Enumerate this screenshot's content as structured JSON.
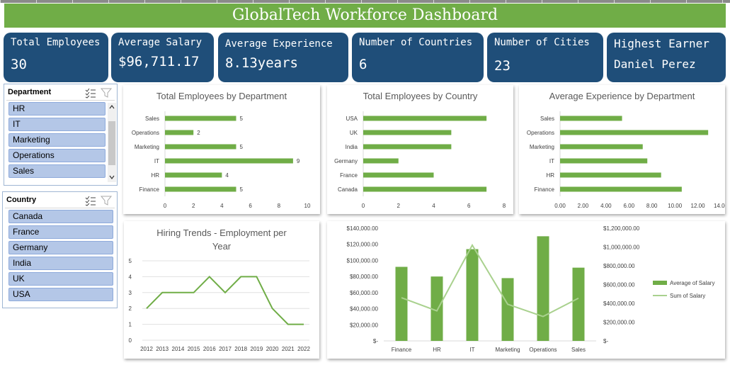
{
  "dashboard": {
    "title": "GlobalTech Workforce Dashboard"
  },
  "kpis": [
    {
      "label": "Total Employees",
      "value": "30"
    },
    {
      "label": "Average Salary",
      "value": "$96,711.17"
    },
    {
      "label": "Average Experience",
      "value": "8.13years"
    },
    {
      "label": "Number of Countries",
      "value": "6"
    },
    {
      "label": "Number of Cities",
      "value": "23"
    },
    {
      "label": "Highest Earner",
      "value": "Daniel Perez"
    }
  ],
  "slicers": {
    "department": {
      "title": "Department",
      "items": [
        "HR",
        "IT",
        "Marketing",
        "Operations",
        "Sales"
      ],
      "icons": [
        "multi-select-icon",
        "clear-filter-icon",
        "scroll-up-icon",
        "scroll-down-icon"
      ]
    },
    "country": {
      "title": "Country",
      "items": [
        "Canada",
        "France",
        "Germany",
        "India",
        "UK",
        "USA"
      ],
      "icons": [
        "multi-select-icon",
        "clear-filter-icon"
      ]
    }
  },
  "chart_data": [
    {
      "id": "emp_by_dept",
      "type": "bar",
      "orientation": "horizontal",
      "title": "Total Employees by Department",
      "categories": [
        "Sales",
        "Operations",
        "Marketing",
        "IT",
        "HR",
        "Finance"
      ],
      "values": [
        5,
        2,
        5,
        9,
        4,
        5
      ],
      "data_labels": [
        "5",
        "2",
        "5",
        "9",
        "4",
        "5"
      ],
      "xlim": [
        0,
        10
      ],
      "xticks": [
        "0",
        "2",
        "4",
        "6",
        "8",
        "10"
      ],
      "color": "#70ad47",
      "grid": false
    },
    {
      "id": "emp_by_country",
      "type": "bar",
      "orientation": "horizontal",
      "title": "Total Employees by Country",
      "categories": [
        "USA",
        "UK",
        "India",
        "Germany",
        "France",
        "Canada"
      ],
      "values": [
        7,
        5,
        5,
        2,
        4,
        7
      ],
      "xlim": [
        0,
        8
      ],
      "xticks": [
        "0",
        "2",
        "4",
        "6",
        "8"
      ],
      "color": "#70ad47",
      "grid": false
    },
    {
      "id": "exp_by_dept",
      "type": "bar",
      "orientation": "horizontal",
      "title": "Average Experience by Department",
      "categories": [
        "Sales",
        "Operations",
        "Marketing",
        "IT",
        "HR",
        "Finance"
      ],
      "values": [
        5.4,
        12.9,
        7.2,
        7.6,
        8.8,
        10.6
      ],
      "xlim": [
        0,
        14
      ],
      "xticks": [
        "0.00",
        "2.00",
        "4.00",
        "6.00",
        "8.00",
        "10.00",
        "12.00",
        "14.00"
      ],
      "color": "#70ad47",
      "grid": false
    },
    {
      "id": "hiring_trends",
      "type": "line",
      "title": "Hiring Trends - Employment per Year",
      "title_lines": [
        "Hiring Trends - Employment per",
        "Year"
      ],
      "x": [
        "2012",
        "2013",
        "2014",
        "2015",
        "2016",
        "2017",
        "2018",
        "2019",
        "2020",
        "2021",
        "2022"
      ],
      "values": [
        2,
        3,
        3,
        3,
        4,
        3,
        4,
        4,
        2,
        1,
        1
      ],
      "ylim": [
        0,
        5
      ],
      "yticks": [
        "0",
        "1",
        "2",
        "3",
        "4",
        "5"
      ],
      "color": "#70ad47",
      "grid": true
    },
    {
      "id": "salary_by_dept",
      "type": "bar",
      "title": "",
      "categories": [
        "Finance",
        "HR",
        "IT",
        "Marketing",
        "Operations",
        "Sales"
      ],
      "series": [
        {
          "name": "Average of Salary",
          "type": "bar",
          "axis": "left",
          "color": "#70ad47",
          "values": [
            92000,
            80000,
            114000,
            78000,
            130000,
            91000
          ]
        },
        {
          "name": "Sum of Salary",
          "type": "line",
          "axis": "right",
          "color": "#a9d18e",
          "values": [
            460000,
            320000,
            1020000,
            390000,
            260000,
            455000
          ]
        }
      ],
      "ylim_left": [
        0,
        140000
      ],
      "yticks_left": [
        "$-",
        "$20,000.00",
        "$40,000.00",
        "$60,000.00",
        "$80,000.00",
        "$100,000.00",
        "$120,000.00",
        "$140,000.00"
      ],
      "ylim_right": [
        0,
        1200000
      ],
      "yticks_right": [
        "$-",
        "$200,000.00",
        "$400,000.00",
        "$600,000.00",
        "$800,000.00",
        "$1,000,000.00",
        "$1,200,000.00"
      ],
      "legend": "right",
      "grid": false
    }
  ]
}
